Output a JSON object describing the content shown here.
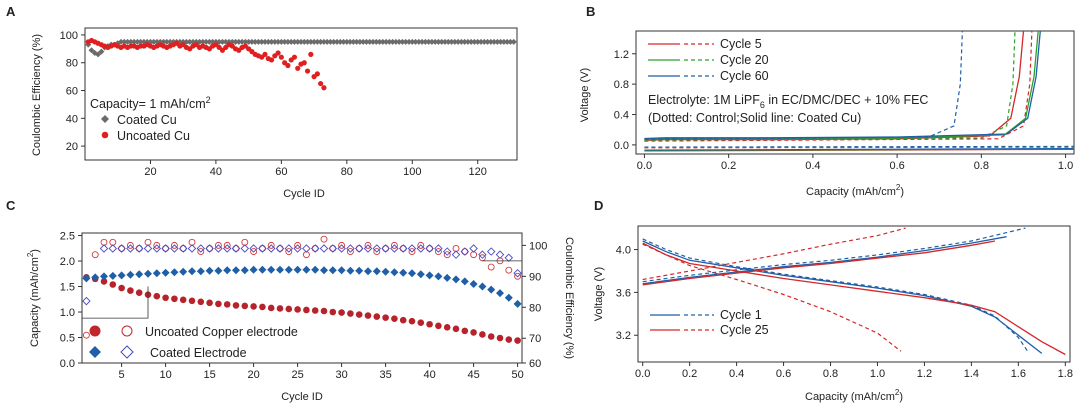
{
  "panel_labels": {
    "a": "A",
    "b": "B",
    "c": "C",
    "d": "D"
  },
  "chart_data": [
    {
      "id": "A",
      "type": "scatter",
      "xlabel": "Cycle ID",
      "ylabel": "Coulombic Efficiency (%)",
      "xlim": [
        0,
        132
      ],
      "ylim": [
        10,
        105
      ],
      "xticks": [
        20,
        40,
        60,
        80,
        100,
        120
      ],
      "yticks": [
        20,
        40,
        60,
        80,
        100
      ],
      "annotation_prefix": "Capacity= 1 mAh/cm",
      "annotation_sup": "2",
      "series": [
        {
          "name": "Coated Cu",
          "color": "#6b6b6b",
          "marker": "diamond",
          "x_start": 1,
          "x_end": 131,
          "values_head": [
            93,
            89,
            87,
            86,
            88,
            91,
            92,
            93,
            93,
            94
          ],
          "value_rest": 95
        },
        {
          "name": "Uncoated Cu",
          "color": "#e02020",
          "marker": "circle",
          "x": [
            1,
            2,
            3,
            4,
            5,
            6,
            7,
            8,
            9,
            10,
            11,
            12,
            13,
            14,
            15,
            16,
            17,
            18,
            19,
            20,
            21,
            22,
            23,
            24,
            25,
            26,
            27,
            28,
            29,
            30,
            31,
            32,
            33,
            34,
            35,
            36,
            37,
            38,
            39,
            40,
            41,
            42,
            43,
            44,
            45,
            46,
            47,
            48,
            49,
            50,
            51,
            52,
            53,
            54,
            55,
            56,
            57,
            58,
            59,
            60,
            61,
            62,
            63,
            64,
            65,
            66,
            67,
            68,
            69,
            70,
            71,
            72,
            73
          ],
          "y": [
            95,
            96,
            95,
            94,
            93,
            92,
            91,
            92,
            93,
            92,
            91,
            92,
            91,
            92,
            92,
            91,
            92,
            92,
            93,
            92,
            91,
            92,
            93,
            92,
            91,
            92,
            93,
            94,
            92,
            93,
            91,
            90,
            92,
            93,
            91,
            92,
            91,
            90,
            92,
            93,
            91,
            89,
            91,
            93,
            92,
            90,
            89,
            91,
            92,
            90,
            88,
            86,
            85,
            84,
            86,
            83,
            82,
            85,
            87,
            84,
            80,
            78,
            82,
            84,
            76,
            79,
            80,
            74,
            86,
            70,
            72,
            65,
            62
          ]
        }
      ]
    },
    {
      "id": "B",
      "type": "line",
      "xlabel_prefix": "Capacity (mAh/cm",
      "xlabel_sup": "2",
      "xlabel_suffix": ")",
      "ylabel": "Voltage (V)",
      "xlim": [
        -0.02,
        1.02
      ],
      "ylim": [
        -0.12,
        1.5
      ],
      "xticks": [
        0.0,
        0.2,
        0.4,
        0.6,
        0.8,
        1.0
      ],
      "yticks": [
        0.0,
        0.4,
        0.8,
        1.2
      ],
      "note1_prefix": "Electrolyte: 1M LiPF",
      "note1_sub": "6",
      "note1_suffix": " in EC/DMC/DEC + 10% FEC",
      "note2": "(Dotted: Control;Solid line: Coated Cu)",
      "series": [
        {
          "name": "Cycle 5",
          "color": "#d62728",
          "solid_end": 0.9,
          "dotted_end": 0.92
        },
        {
          "name": "Cycle 20",
          "color": "#2ca02c",
          "solid_end": 0.935,
          "dotted_end": 0.88
        },
        {
          "name": "Cycle 60",
          "color": "#1f5fa8",
          "solid_end": 0.94,
          "dotted_end": 0.755
        }
      ]
    },
    {
      "id": "C",
      "type": "scatter",
      "xlabel": "Cycle ID",
      "ylabel_prefix": "Capacity (mAh/cm",
      "ylabel_sup": "2",
      "ylabel_suffix": ")",
      "y2label": "Coulombic Efficiency (%)",
      "xlim": [
        0.5,
        50.5
      ],
      "ylim": [
        0,
        2.55
      ],
      "y2lim": [
        62,
        104
      ],
      "xticks": [
        5,
        10,
        15,
        20,
        25,
        30,
        35,
        40,
        45,
        50
      ],
      "yticks": [
        0.0,
        0.5,
        1.0,
        1.5,
        2.0,
        2.5
      ],
      "y2ticks": [
        60,
        70,
        80,
        90,
        100
      ],
      "legend": [
        {
          "label": "Uncoated Copper electrode",
          "color": "#c0272d"
        },
        {
          "label": "Coated Electrode",
          "color": "#1f5fa8"
        }
      ],
      "series": [
        {
          "name": "Uncoated capacity",
          "axis": "left",
          "color": "#b8232b",
          "values": [
            1.68,
            1.65,
            1.6,
            1.54,
            1.47,
            1.42,
            1.38,
            1.34,
            1.31,
            1.28,
            1.26,
            1.24,
            1.22,
            1.2,
            1.18,
            1.16,
            1.15,
            1.13,
            1.12,
            1.11,
            1.1,
            1.08,
            1.07,
            1.06,
            1.05,
            1.04,
            1.03,
            1.02,
            1.0,
            0.99,
            0.97,
            0.95,
            0.93,
            0.91,
            0.89,
            0.87,
            0.84,
            0.82,
            0.79,
            0.76,
            0.73,
            0.7,
            0.67,
            0.63,
            0.6,
            0.56,
            0.52,
            0.49,
            0.46,
            0.44
          ]
        },
        {
          "name": "Coated capacity",
          "axis": "left",
          "color": "#1f5fa8",
          "values": [
            1.66,
            1.68,
            1.7,
            1.71,
            1.72,
            1.73,
            1.74,
            1.75,
            1.76,
            1.77,
            1.78,
            1.79,
            1.8,
            1.8,
            1.81,
            1.81,
            1.82,
            1.82,
            1.82,
            1.83,
            1.83,
            1.83,
            1.83,
            1.83,
            1.83,
            1.83,
            1.83,
            1.82,
            1.82,
            1.82,
            1.81,
            1.81,
            1.8,
            1.8,
            1.79,
            1.78,
            1.77,
            1.76,
            1.74,
            1.72,
            1.7,
            1.67,
            1.64,
            1.6,
            1.55,
            1.5,
            1.44,
            1.37,
            1.28,
            1.16
          ]
        },
        {
          "name": "Uncoated CE",
          "axis": "right",
          "color": "#d23a3a",
          "values": [
            71,
            97,
            101,
            101,
            99,
            100,
            99,
            101,
            100,
            99,
            100,
            99,
            101,
            98,
            99,
            100,
            100,
            99,
            101,
            98,
            99,
            100,
            99,
            98,
            100,
            97,
            99,
            102,
            99,
            100,
            98,
            99,
            100,
            98,
            99,
            100,
            99,
            98,
            100,
            99,
            98,
            97,
            99,
            98,
            97,
            96,
            93,
            95,
            92,
            90
          ]
        },
        {
          "name": "Coated CE",
          "axis": "right",
          "color": "#4a4ac4",
          "values": [
            82,
            72,
            99,
            99,
            99,
            99,
            99,
            99,
            99,
            99,
            99,
            99,
            99,
            99,
            99,
            99,
            99,
            99,
            99,
            99,
            99,
            99,
            99,
            99,
            99,
            99,
            99,
            99,
            99,
            99,
            99,
            99,
            99,
            99,
            99,
            99,
            99,
            99,
            99,
            99,
            99,
            98,
            97,
            98,
            99,
            97,
            98,
            97,
            96,
            91
          ]
        }
      ]
    },
    {
      "id": "D",
      "type": "line",
      "xlabel_prefix": "Capacity (mAh/cm",
      "xlabel_sup": "2",
      "xlabel_suffix": ")",
      "ylabel": "Voltage (V)",
      "xlim": [
        -0.02,
        1.82
      ],
      "ylim": [
        2.95,
        4.22
      ],
      "xticks": [
        0.0,
        0.2,
        0.4,
        0.6,
        0.8,
        1.0,
        1.2,
        1.4,
        1.6,
        1.8
      ],
      "yticks": [
        3.2,
        3.6,
        4.0
      ],
      "series": [
        {
          "name": "Cycle 1",
          "color": "#1f5fa8",
          "charge_solid": [
            [
              0,
              3.68
            ],
            [
              0.2,
              3.74
            ],
            [
              0.4,
              3.79
            ],
            [
              0.6,
              3.84
            ],
            [
              0.8,
              3.88
            ],
            [
              1.0,
              3.93
            ],
            [
              1.2,
              3.99
            ],
            [
              1.4,
              4.06
            ],
            [
              1.55,
              4.12
            ]
          ],
          "discharge_solid": [
            [
              0,
              4.08
            ],
            [
              0.1,
              3.98
            ],
            [
              0.2,
              3.9
            ],
            [
              0.4,
              3.83
            ],
            [
              0.6,
              3.76
            ],
            [
              0.8,
              3.7
            ],
            [
              1.0,
              3.64
            ],
            [
              1.2,
              3.57
            ],
            [
              1.4,
              3.47
            ],
            [
              1.5,
              3.37
            ],
            [
              1.6,
              3.2
            ],
            [
              1.7,
              3.03
            ]
          ],
          "charge_dotted": [
            [
              0,
              3.7
            ],
            [
              0.2,
              3.76
            ],
            [
              0.4,
              3.81
            ],
            [
              0.6,
              3.86
            ],
            [
              0.8,
              3.9
            ],
            [
              1.0,
              3.95
            ],
            [
              1.2,
              4.01
            ],
            [
              1.4,
              4.08
            ],
            [
              1.63,
              4.2
            ]
          ],
          "discharge_dotted": [
            [
              0,
              4.1
            ],
            [
              0.1,
              4.0
            ],
            [
              0.2,
              3.92
            ],
            [
              0.4,
              3.84
            ],
            [
              0.6,
              3.77
            ],
            [
              0.8,
              3.71
            ],
            [
              1.0,
              3.65
            ],
            [
              1.2,
              3.58
            ],
            [
              1.4,
              3.48
            ],
            [
              1.5,
              3.38
            ],
            [
              1.6,
              3.18
            ],
            [
              1.64,
              3.05
            ]
          ]
        },
        {
          "name": "Cycle 25",
          "color": "#d62728",
          "charge_solid": [
            [
              0,
              3.67
            ],
            [
              0.2,
              3.73
            ],
            [
              0.4,
              3.78
            ],
            [
              0.6,
              3.83
            ],
            [
              0.8,
              3.87
            ],
            [
              1.0,
              3.92
            ],
            [
              1.2,
              3.97
            ],
            [
              1.4,
              4.04
            ],
            [
              1.5,
              4.08
            ]
          ],
          "discharge_solid": [
            [
              0,
              4.06
            ],
            [
              0.1,
              3.95
            ],
            [
              0.2,
              3.87
            ],
            [
              0.4,
              3.8
            ],
            [
              0.6,
              3.73
            ],
            [
              0.8,
              3.67
            ],
            [
              1.0,
              3.61
            ],
            [
              1.2,
              3.55
            ],
            [
              1.4,
              3.48
            ],
            [
              1.5,
              3.42
            ],
            [
              1.6,
              3.28
            ],
            [
              1.7,
              3.14
            ],
            [
              1.8,
              3.02
            ]
          ],
          "charge_dotted": [
            [
              0,
              3.72
            ],
            [
              0.2,
              3.8
            ],
            [
              0.4,
              3.88
            ],
            [
              0.6,
              3.96
            ],
            [
              0.8,
              4.05
            ],
            [
              1.0,
              4.13
            ],
            [
              1.12,
              4.2
            ]
          ],
          "discharge_dotted": [
            [
              0,
              4.05
            ],
            [
              0.1,
              3.95
            ],
            [
              0.2,
              3.85
            ],
            [
              0.4,
              3.72
            ],
            [
              0.6,
              3.58
            ],
            [
              0.8,
              3.42
            ],
            [
              1.0,
              3.22
            ],
            [
              1.1,
              3.05
            ]
          ]
        }
      ]
    }
  ]
}
